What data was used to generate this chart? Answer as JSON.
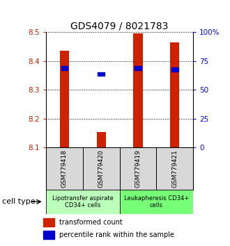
{
  "title": "GDS4079 / 8021783",
  "samples": [
    "GSM779418",
    "GSM779420",
    "GSM779419",
    "GSM779421"
  ],
  "red_values": [
    8.435,
    8.155,
    8.495,
    8.465
  ],
  "blue_values": [
    8.375,
    8.355,
    8.375,
    8.37
  ],
  "ylim": [
    8.1,
    8.5
  ],
  "yticks_left": [
    8.1,
    8.2,
    8.3,
    8.4,
    8.5
  ],
  "yticks_right": [
    0,
    25,
    50,
    75,
    100
  ],
  "ytick_labels_right": [
    "0",
    "25",
    "50",
    "75",
    "100%"
  ],
  "bar_width": 0.25,
  "groups": [
    {
      "label": "Lipotransfer aspirate\nCD34+ cells",
      "samples": [
        0,
        1
      ],
      "color": "#bbffbb"
    },
    {
      "label": "Leukapheresis CD34+\ncells",
      "samples": [
        2,
        3
      ],
      "color": "#77ff77"
    }
  ],
  "cell_type_label": "cell type",
  "legend_red": "transformed count",
  "legend_blue": "percentile rank within the sample",
  "red_color": "#cc2200",
  "blue_color": "#0000cc",
  "title_fontsize": 10,
  "tick_fontsize": 7.5,
  "sample_fontsize": 6.5,
  "group_fontsize": 6,
  "legend_fontsize": 7
}
